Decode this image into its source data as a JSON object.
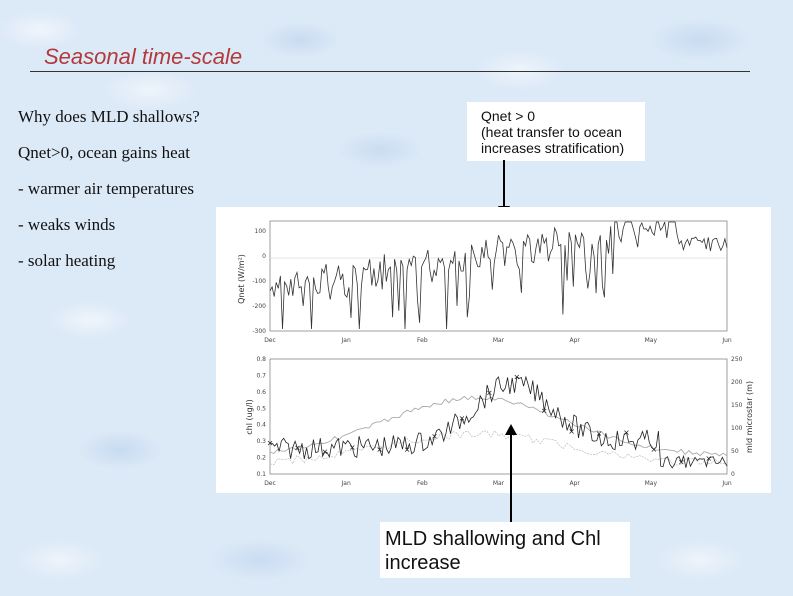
{
  "slide": {
    "title": "Seasonal time-scale",
    "bullets": [
      "Why does MLD shallows?",
      "Qnet>0, ocean gains heat",
      "- warmer air temperatures",
      "- weaks winds",
      "- solar heating"
    ],
    "qnet_callout": {
      "line1": "Qnet > 0",
      "line2": "(heat transfer to ocean",
      "line3": "increases stratification)"
    },
    "mld_callout": "MLD shallowing and Chl increase"
  },
  "chart_data": [
    {
      "type": "line",
      "ylabel": "Qnet (W/m²)",
      "ylim": [
        -300,
        120
      ],
      "y_ticks": [
        "100",
        "0",
        "-100",
        "-200",
        "-300"
      ],
      "x_ticks": [
        "Dec",
        "Jan",
        "Feb",
        "Mar",
        "Apr",
        "May",
        "Jun"
      ],
      "grid": false
    },
    {
      "type": "line",
      "ylabel": "chl (ug/l)",
      "y2label": "mld microstar (m)",
      "ylim": [
        0.1,
        0.8
      ],
      "y2lim": [
        0,
        250
      ],
      "y_ticks": [
        "0.8",
        "0.7",
        "0.6",
        "0.5",
        "0.4",
        "0.3",
        "0.2",
        "0.1"
      ],
      "y2_ticks": [
        "250",
        "200",
        "150",
        "100",
        "50",
        "0"
      ],
      "x_ticks": [
        "Dec",
        "Jan",
        "Feb",
        "Mar",
        "Apr",
        "May",
        "Jun"
      ],
      "grid": false
    }
  ]
}
